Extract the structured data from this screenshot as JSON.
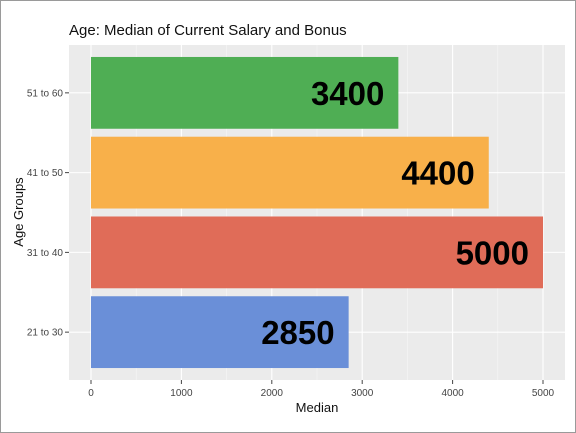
{
  "chart_data": {
    "type": "bar",
    "orientation": "horizontal",
    "title": "Age: Median of Current Salary and Bonus",
    "xlabel": "Median",
    "ylabel": "Age Groups",
    "xlim": [
      0,
      5000
    ],
    "x_ticks": [
      "0",
      "1000",
      "2000",
      "3000",
      "4000",
      "5000"
    ],
    "categories": [
      "21 to 30",
      "31 to 40",
      "41 to 50",
      "51 to 60"
    ],
    "values": [
      2850,
      5000,
      4400,
      3400
    ],
    "value_labels": [
      "2850",
      "5000",
      "4400",
      "3400"
    ],
    "bar_colors": [
      "#6a8fd8",
      "#e06c58",
      "#f8b04a",
      "#4fae54"
    ],
    "panel_background": "#ebebeb",
    "grid": true,
    "legend": "none"
  }
}
